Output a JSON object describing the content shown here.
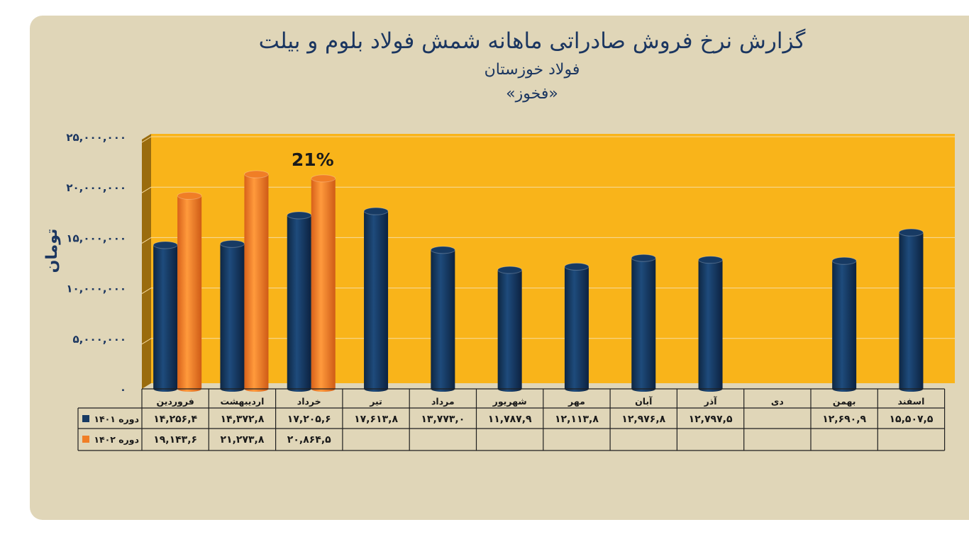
{
  "header": {
    "title": "گزارش نرخ فروش صادراتی ماهانه شمش فولاد بلوم و بیلت",
    "subtitle": "فولاد خوزستان",
    "company_code": "«فخوز»"
  },
  "colors": {
    "plot_bg": "#f9b41a",
    "wall_side": "#9a6c0e",
    "series_1401": "#173a63",
    "series_1402": "#f07e26",
    "text": "#1b3660"
  },
  "chart_data": {
    "type": "bar",
    "ylabel": "تومان",
    "ylim": [
      0,
      25000000
    ],
    "y_ticks": [
      0,
      5000000,
      10000000,
      15000000,
      20000000,
      25000000
    ],
    "y_tick_labels": [
      "۰",
      "۵,۰۰۰,۰۰۰",
      "۱۰,۰۰۰,۰۰۰",
      "۱۵,۰۰۰,۰۰۰",
      "۲۰,۰۰۰,۰۰۰",
      "۲۵,۰۰۰,۰۰۰"
    ],
    "categories": [
      "فروردین",
      "اردیبهشت",
      "خرداد",
      "تیر",
      "مرداد",
      "شهریور",
      "مهر",
      "آبان",
      "آذر",
      "دی",
      "بهمن",
      "اسفند"
    ],
    "series": [
      {
        "name": "دوره ۱۴۰۱",
        "values": [
          14256400,
          14372800,
          17205600,
          17613800,
          13773000,
          11787900,
          12113800,
          12976800,
          12797500,
          null,
          12690900,
          15507500
        ],
        "table_labels": [
          "۱۴,۲۵۶,۴",
          "۱۴,۳۷۲,۸",
          "۱۷,۲۰۵,۶",
          "۱۷,۶۱۳,۸",
          "۱۳,۷۷۳,۰",
          "۱۱,۷۸۷,۹",
          "۱۲,۱۱۳,۸",
          "۱۲,۹۷۶,۸",
          "۱۲,۷۹۷,۵",
          "",
          "۱۲,۶۹۰,۹",
          "۱۵,۵۰۷,۵"
        ]
      },
      {
        "name": "دوره ۱۴۰۲",
        "values": [
          19143600,
          21273800,
          20864500,
          null,
          null,
          null,
          null,
          null,
          null,
          null,
          null,
          null
        ],
        "table_labels": [
          "۱۹,۱۴۳,۶",
          "۲۱,۲۷۳,۸",
          "۲۰,۸۶۴,۵",
          "",
          "",
          "",
          "",
          "",
          "",
          "",
          "",
          ""
        ]
      }
    ],
    "annotations": [
      {
        "text": "21%",
        "category": "خرداد"
      }
    ],
    "grid": true,
    "legend": "data-table-left"
  }
}
